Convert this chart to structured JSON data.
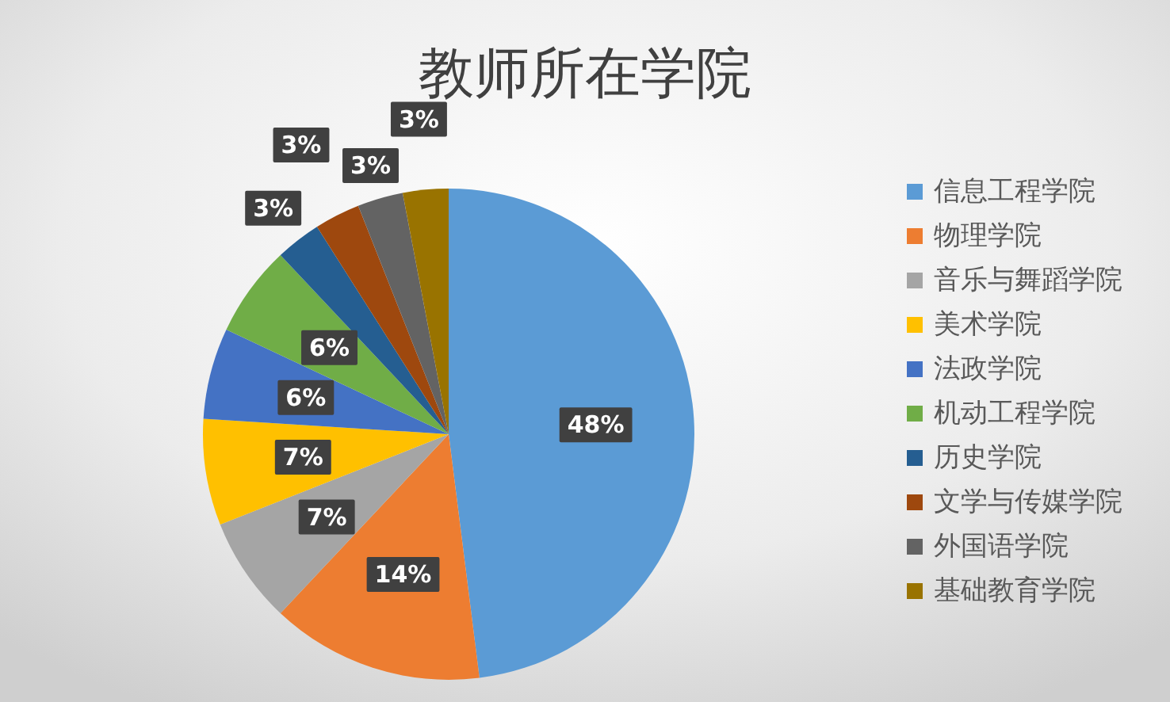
{
  "chart_data": {
    "type": "pie",
    "title": "教师所在学院",
    "categories": [
      "信息工程学院",
      "物理学院",
      "音乐与舞蹈学院",
      "美术学院",
      "法政学院",
      "机动工程学院",
      "历史学院",
      "文学与传媒学院",
      "外国语学院",
      "基础教育学院"
    ],
    "values": [
      48,
      14,
      7,
      7,
      6,
      6,
      3,
      3,
      3,
      3
    ],
    "colors": [
      "#5b9bd5",
      "#ed7d31",
      "#a5a5a5",
      "#ffc000",
      "#4472c4",
      "#70ad47",
      "#255e91",
      "#9e480e",
      "#636363",
      "#997300"
    ],
    "value_labels": [
      "48%",
      "14%",
      "7%",
      "7%",
      "6%",
      "6%",
      "3%",
      "3%",
      "3%",
      "3%"
    ],
    "legend": "right"
  }
}
